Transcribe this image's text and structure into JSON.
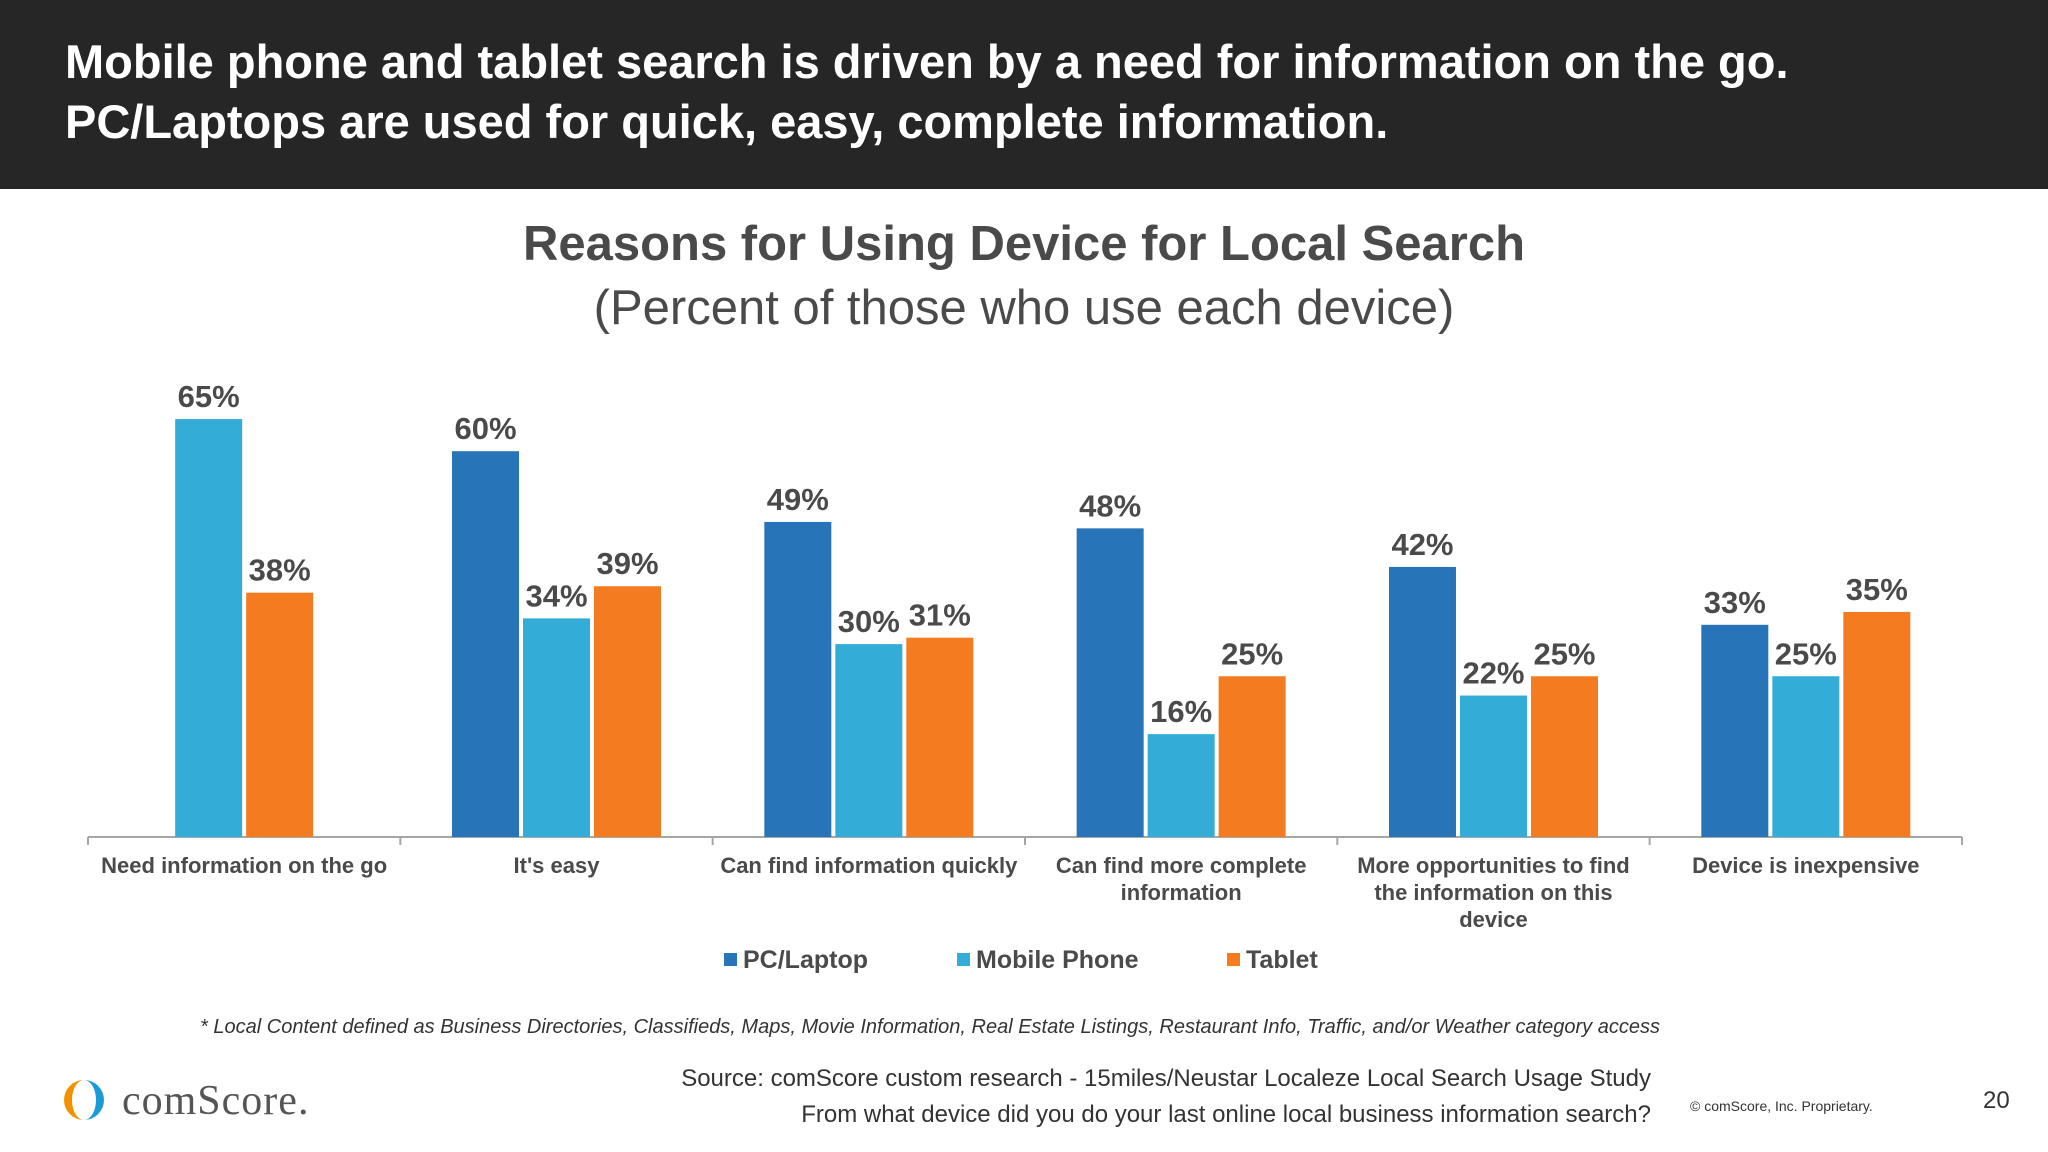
{
  "header": {
    "line1": "Mobile phone and tablet search is driven by a need for information on the go.",
    "line2": "PC/Laptops are used for quick, easy, complete information."
  },
  "chart_data": {
    "type": "bar",
    "title": "Reasons for Using Device for Local Search",
    "subtitle": "(Percent of those who use each device)",
    "categories": [
      "Need information on the go",
      "It's easy",
      "Can find information quickly",
      "Can find more complete information",
      "More opportunities to find the information on this device",
      "Device is inexpensive"
    ],
    "category_lines": [
      [
        "Need information on the go"
      ],
      [
        "It's easy"
      ],
      [
        "Can find information quickly"
      ],
      [
        "Can find more complete",
        "information"
      ],
      [
        "More opportunities to find",
        "the information on this",
        "device"
      ],
      [
        "Device is inexpensive"
      ]
    ],
    "series": [
      {
        "name": "PC/Laptop",
        "color": "#2874b8",
        "values": [
          null,
          60,
          49,
          48,
          42,
          33
        ]
      },
      {
        "name": "Mobile Phone",
        "color": "#33acd8",
        "values": [
          65,
          34,
          30,
          16,
          22,
          25
        ]
      },
      {
        "name": "Tablet",
        "color": "#f47b20",
        "values": [
          38,
          39,
          31,
          25,
          25,
          35
        ]
      }
    ],
    "value_suffix": "%",
    "ylim": [
      0,
      70
    ],
    "grid": false,
    "legend_position": "bottom"
  },
  "footnote": "* Local Content defined as Business Directories, Classifieds, Maps, Movie Information, Real Estate Listings, Restaurant Info, Traffic, and/or Weather category access",
  "source": {
    "line1": "Source: comScore custom research - 15miles/Neustar Localeze Local Search Usage Study",
    "line2": "From what device did you do your last online local business information search?"
  },
  "logo_text": "comScore.",
  "copyright": "© comScore, Inc. Proprietary.",
  "page_number": "20"
}
